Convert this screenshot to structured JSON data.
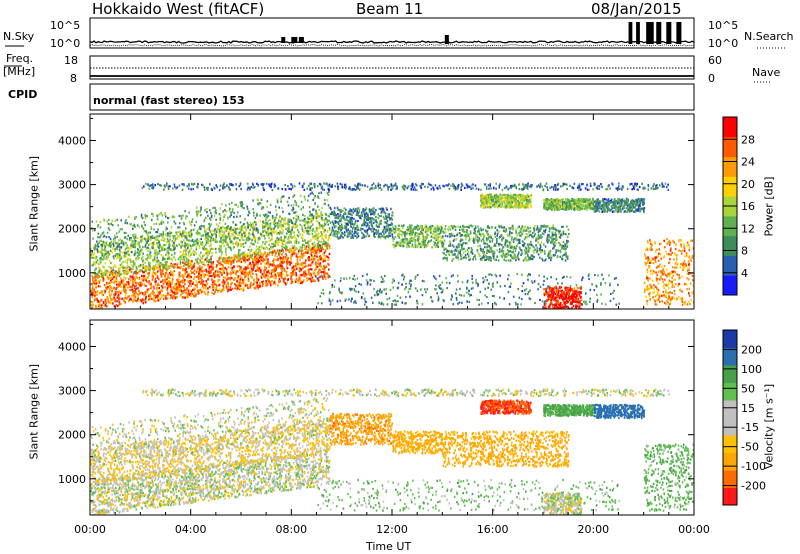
{
  "header": {
    "radar": "Hokkaido West (fitACF)",
    "beam": "Beam 11",
    "date": "08/Jan/2015"
  },
  "noise_panel": {
    "left_label": "N.Sky",
    "left_ticks": [
      "10^5",
      "10^0"
    ],
    "right_ticks": [
      "10^5",
      "10^0"
    ],
    "right_label": "N.Search"
  },
  "freq_panel": {
    "left_label_1": "Freq.",
    "left_label_2": "[MHz]",
    "left_ticks": [
      "18",
      "8"
    ],
    "right_ticks": [
      "60",
      "0"
    ],
    "right_label": "Nave",
    "cpid_label": "CPID",
    "cpid_text": "normal (fast stereo) 153"
  },
  "colors": {
    "power_scale": [
      "#1a1aff",
      "#2a5fb0",
      "#3e8c5a",
      "#5fb04f",
      "#a8d63a",
      "#ffd000",
      "#ff9a00",
      "#ff5a00",
      "#ff0000"
    ],
    "velocity_scale": [
      "#ff1a1a",
      "#ff6a00",
      "#ffa500",
      "#ffc000",
      "#c0c0c0",
      "#c0c0c0",
      "#5fc04f",
      "#4aa04a",
      "#2a6fb0",
      "#1a3aa8"
    ]
  },
  "chart_data": [
    {
      "type": "heatmap",
      "name": "power",
      "xlabel": "",
      "ylabel": "Slant Range [km]",
      "x_ticks": [
        "00:00",
        "04:00",
        "08:00",
        "12:00",
        "16:00",
        "20:00",
        "00:00"
      ],
      "y_ticks": [
        "1000",
        "2000",
        "3000",
        "4000"
      ],
      "ylim": [
        180,
        4600
      ],
      "colorbar_label": "Power [dB]",
      "colorbar_ticks": [
        "28",
        "24",
        "20",
        "16",
        "12",
        "8",
        "4"
      ],
      "colorbar_range": [
        0,
        30
      ]
    },
    {
      "type": "heatmap",
      "name": "velocity",
      "xlabel": "Time UT",
      "ylabel": "Slant Range [km]",
      "x_ticks": [
        "00:00",
        "04:00",
        "08:00",
        "12:00",
        "16:00",
        "20:00",
        "00:00"
      ],
      "y_ticks": [
        "1000",
        "2000",
        "3000",
        "4000"
      ],
      "ylim": [
        180,
        4600
      ],
      "colorbar_label": "Velocity [m s⁻¹]",
      "colorbar_ticks": [
        "200",
        "100",
        "50",
        "15",
        "-15",
        "-50",
        "-100",
        "-200"
      ],
      "colorbar_range": [
        -250,
        250
      ]
    }
  ]
}
